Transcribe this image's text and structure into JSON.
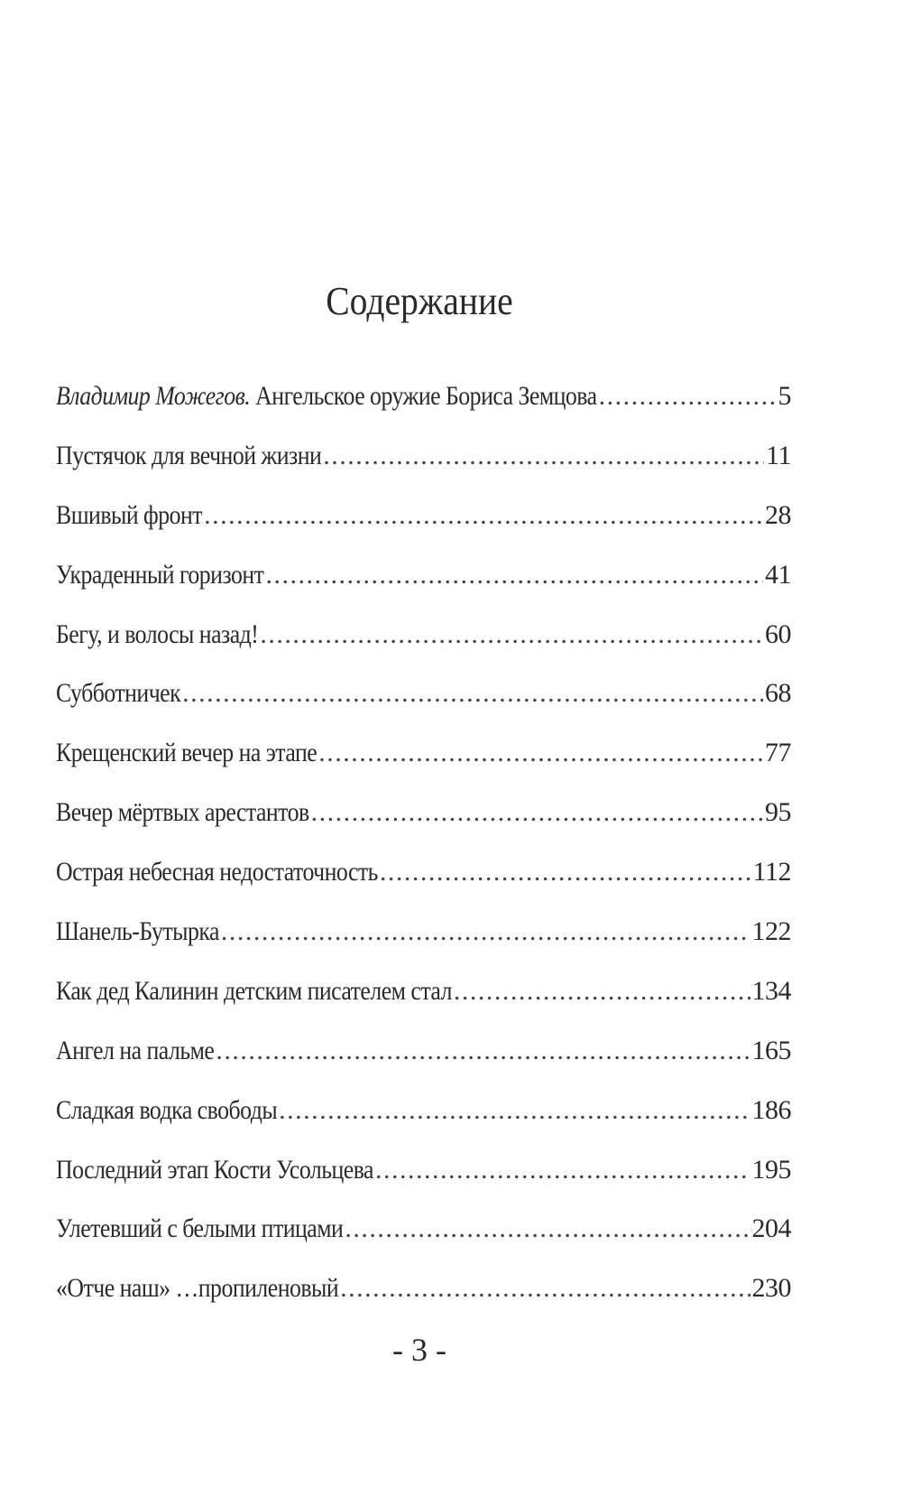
{
  "title": "Содержание",
  "entries": [
    {
      "author": "Владимир Можегов.",
      "label": "Ангельское оружие Бориса Земцова",
      "page": "5"
    },
    {
      "label": "Пустячок для вечной жизни",
      "page": "11"
    },
    {
      "label": "Вшивый фронт",
      "page": "28"
    },
    {
      "label": "Украденный горизонт",
      "page": "41"
    },
    {
      "label": "Бегу, и волосы назад!",
      "page": "60"
    },
    {
      "label": "Субботничек",
      "page": "68"
    },
    {
      "label": "Крещенский вечер на этапе",
      "page": "77"
    },
    {
      "label": "Вечер мёртвых арестантов",
      "page": "95"
    },
    {
      "label": "Острая небесная недостаточность",
      "page": "112"
    },
    {
      "label": "Шанель-Бутырка",
      "page": "122"
    },
    {
      "label": "Как дед Калинин детским писателем стал",
      "page": "134"
    },
    {
      "label": "Ангел на пальме",
      "page": "165"
    },
    {
      "label": "Сладкая водка свободы",
      "page": "186"
    },
    {
      "label": "Последний этап Кости Усольцева",
      "page": "195"
    },
    {
      "label": "Улетевший с белыми птицами",
      "page": "204"
    },
    {
      "label": "«Отче наш» …пропиленовый",
      "page": "230"
    }
  ],
  "page_number": "- 3 -"
}
